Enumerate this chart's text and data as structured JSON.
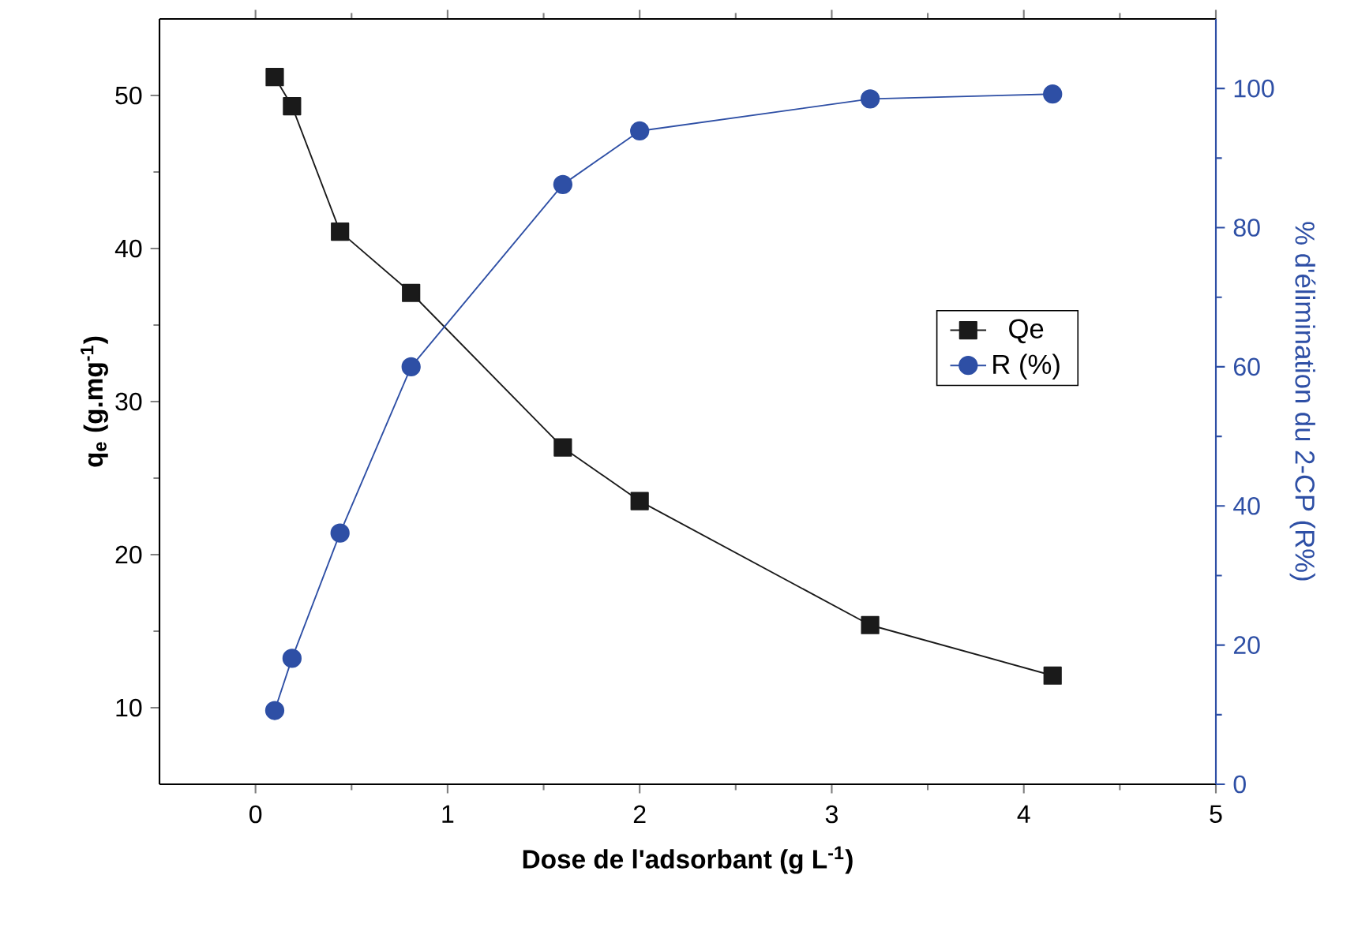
{
  "chart_data": {
    "type": "line",
    "xlabel": "Dose de l'adsorbant (g L$^{-1}$)",
    "ylabel": "q$_{e}$ (g.mg$^{-1}$)",
    "y2label": "% d'élimination du 2-CP (R%)",
    "x": [
      0.1,
      0.19,
      0.44,
      0.81,
      1.6,
      2.0,
      3.2,
      4.15
    ],
    "xlim": [
      -0.5,
      5
    ],
    "xticks": [
      0,
      1,
      2,
      3,
      4,
      5
    ],
    "ylim": [
      5,
      55
    ],
    "yticks": [
      10,
      20,
      30,
      40,
      50
    ],
    "y2lim": [
      0,
      110
    ],
    "y2ticks": [
      0,
      20,
      40,
      60,
      80,
      100
    ],
    "legend": "right",
    "grid": false,
    "series": [
      {
        "name": "Qe",
        "color": "#1a1a1a",
        "marker": "square",
        "values": [
          51.2,
          49.3,
          41.1,
          37.1,
          27.0,
          23.5,
          15.4,
          12.1
        ]
      },
      {
        "name": "R (%)",
        "color": "#2e4fa5",
        "marker": "circle",
        "axis": "y2",
        "values": [
          10.6,
          18.1,
          36.1,
          60.0,
          86.2,
          93.9,
          98.5,
          99.2
        ]
      }
    ]
  }
}
